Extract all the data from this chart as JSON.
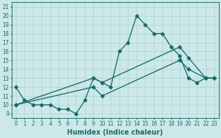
{
  "background_color": "#cce8e8",
  "grid_color": "#b0d4d4",
  "line_color": "#1a6b6b",
  "xlabel": "Humidex (Indice chaleur)",
  "xlim": [
    -0.5,
    23.5
  ],
  "ylim": [
    8.5,
    21.5
  ],
  "xticks": [
    0,
    1,
    2,
    3,
    4,
    5,
    6,
    7,
    8,
    9,
    10,
    11,
    12,
    13,
    14,
    15,
    16,
    17,
    18,
    19,
    20,
    21,
    22,
    23
  ],
  "yticks": [
    9,
    10,
    11,
    12,
    13,
    14,
    15,
    16,
    17,
    18,
    19,
    20,
    21
  ],
  "line1_x": [
    0,
    1,
    2,
    3,
    4,
    5,
    6,
    7,
    8,
    9,
    10,
    11,
    12,
    13,
    14,
    15,
    16,
    17,
    18,
    19,
    20,
    21,
    22,
    23
  ],
  "line1_y": [
    12,
    10.5,
    10,
    10,
    10,
    9.5,
    9.5,
    9,
    10.5,
    13,
    12.5,
    12,
    16,
    17,
    20,
    19,
    18,
    18,
    16.5,
    15.5,
    13,
    12.5,
    13,
    13
  ],
  "line2_x": [
    0,
    9,
    10,
    19,
    20,
    22,
    23
  ],
  "line2_y": [
    10,
    13,
    12.5,
    16.5,
    15.3,
    13,
    13
  ],
  "line3_x": [
    0,
    9,
    10,
    19,
    20,
    22,
    23
  ],
  "line3_y": [
    10,
    12,
    11,
    15,
    14,
    13,
    13
  ],
  "marker_size": 2.5,
  "line_width": 1.0,
  "tick_fontsize": 5.5,
  "xlabel_fontsize": 7.0
}
